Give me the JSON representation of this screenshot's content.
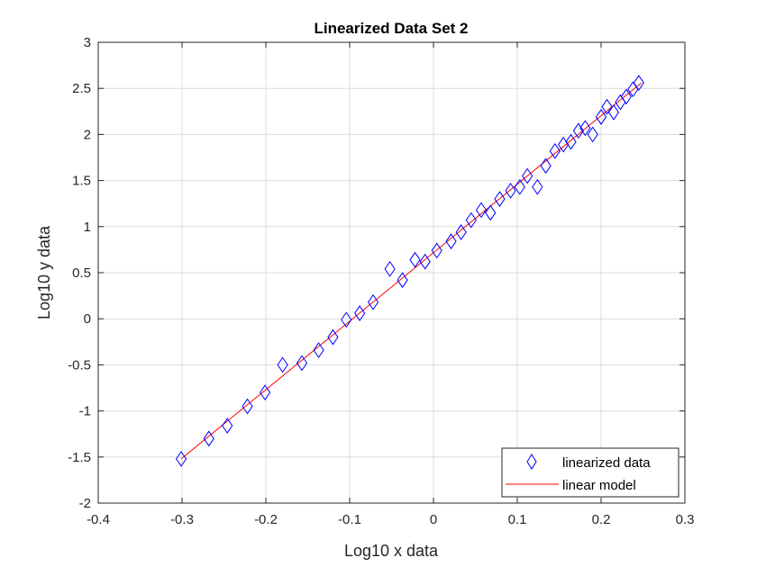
{
  "chart_data": {
    "type": "scatter",
    "title": "Linearized Data Set 2",
    "xlabel": "Log10 x data",
    "ylabel": "Log10 y data",
    "xlim": [
      -0.4,
      0.3
    ],
    "ylim": [
      -2,
      3
    ],
    "xticks": [
      -0.4,
      -0.3,
      -0.2,
      -0.1,
      0,
      0.1,
      0.2,
      0.3
    ],
    "xtick_labels": [
      "-0.4",
      "-0.3",
      "-0.2",
      "-0.1",
      "0",
      "0.1",
      "0.2",
      "0.3"
    ],
    "yticks": [
      -2,
      -1.5,
      -1,
      -0.5,
      0,
      0.5,
      1,
      1.5,
      2,
      2.5,
      3
    ],
    "ytick_labels": [
      "-2",
      "-1.5",
      "-1",
      "-0.5",
      "0",
      "0.5",
      "1",
      "1.5",
      "2",
      "2.5",
      "3"
    ],
    "grid": true,
    "legend_position": "bottom-right",
    "series": [
      {
        "name": "linearized data",
        "kind": "scatter",
        "marker": "diamond",
        "color": "#0000FF",
        "points": [
          [
            -0.301,
            -1.52
          ],
          [
            -0.268,
            -1.3
          ],
          [
            -0.246,
            -1.16
          ],
          [
            -0.222,
            -0.95
          ],
          [
            -0.201,
            -0.8
          ],
          [
            -0.18,
            -0.5
          ],
          [
            -0.157,
            -0.48
          ],
          [
            -0.137,
            -0.34
          ],
          [
            -0.12,
            -0.2
          ],
          [
            -0.104,
            -0.01
          ],
          [
            -0.088,
            0.06
          ],
          [
            -0.072,
            0.18
          ],
          [
            -0.052,
            0.54
          ],
          [
            -0.037,
            0.42
          ],
          [
            -0.022,
            0.64
          ],
          [
            -0.01,
            0.62
          ],
          [
            0.004,
            0.74
          ],
          [
            0.021,
            0.84
          ],
          [
            0.033,
            0.94
          ],
          [
            0.045,
            1.07
          ],
          [
            0.057,
            1.18
          ],
          [
            0.068,
            1.15
          ],
          [
            0.079,
            1.3
          ],
          [
            0.092,
            1.39
          ],
          [
            0.103,
            1.43
          ],
          [
            0.112,
            1.55
          ],
          [
            0.124,
            1.43
          ],
          [
            0.134,
            1.66
          ],
          [
            0.145,
            1.82
          ],
          [
            0.155,
            1.89
          ],
          [
            0.164,
            1.92
          ],
          [
            0.173,
            2.04
          ],
          [
            0.181,
            2.07
          ],
          [
            0.19,
            2.0
          ],
          [
            0.2,
            2.19
          ],
          [
            0.207,
            2.3
          ],
          [
            0.215,
            2.24
          ],
          [
            0.223,
            2.35
          ],
          [
            0.23,
            2.41
          ],
          [
            0.238,
            2.49
          ],
          [
            0.245,
            2.56
          ]
        ]
      },
      {
        "name": "linear model",
        "kind": "line",
        "color": "#FF0000",
        "points": [
          [
            -0.301,
            -1.52
          ],
          [
            0.248,
            2.56
          ]
        ]
      }
    ]
  }
}
